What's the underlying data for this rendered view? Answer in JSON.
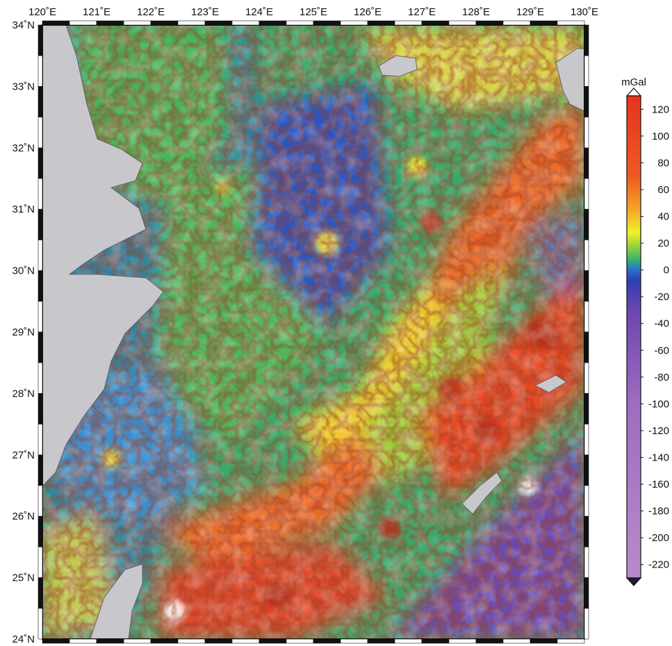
{
  "map": {
    "lon_labels": [
      "120˚E",
      "121˚E",
      "122˚E",
      "123˚E",
      "124˚E",
      "125˚E",
      "126˚E",
      "127˚E",
      "128˚E",
      "129˚E",
      "130˚E"
    ],
    "lat_labels": [
      "34˚N",
      "33˚N",
      "32˚N",
      "31˚N",
      "30˚N",
      "29˚N",
      "28˚N",
      "27˚N",
      "26˚N",
      "25˚N",
      "24˚N"
    ],
    "lon_range": [
      120,
      130
    ],
    "lat_range": [
      24,
      34
    ],
    "land_color": "#c7c7cc",
    "frame_color": "#111111"
  },
  "colorbar": {
    "unit": "mGal",
    "tick_labels": [
      "120",
      "100",
      "80",
      "60",
      "40",
      "20",
      "0",
      "-20",
      "-40",
      "-60",
      "-80",
      "-100",
      "-120",
      "-140",
      "-160",
      "-180",
      "-200",
      "-220"
    ],
    "range": [
      -230,
      130
    ],
    "color_stops": [
      {
        "value": -230,
        "color": "#b98acb"
      },
      {
        "value": -100,
        "color": "#9f6cc0"
      },
      {
        "value": -30,
        "color": "#6b47b0"
      },
      {
        "value": -8,
        "color": "#2f3fb0"
      },
      {
        "value": 0,
        "color": "#2a6fd0"
      },
      {
        "value": 8,
        "color": "#35b86a"
      },
      {
        "value": 18,
        "color": "#9bd23c"
      },
      {
        "value": 28,
        "color": "#f2f02a"
      },
      {
        "value": 45,
        "color": "#f4a62a"
      },
      {
        "value": 70,
        "color": "#ee5a22"
      },
      {
        "value": 130,
        "color": "#e8321f"
      }
    ]
  }
}
